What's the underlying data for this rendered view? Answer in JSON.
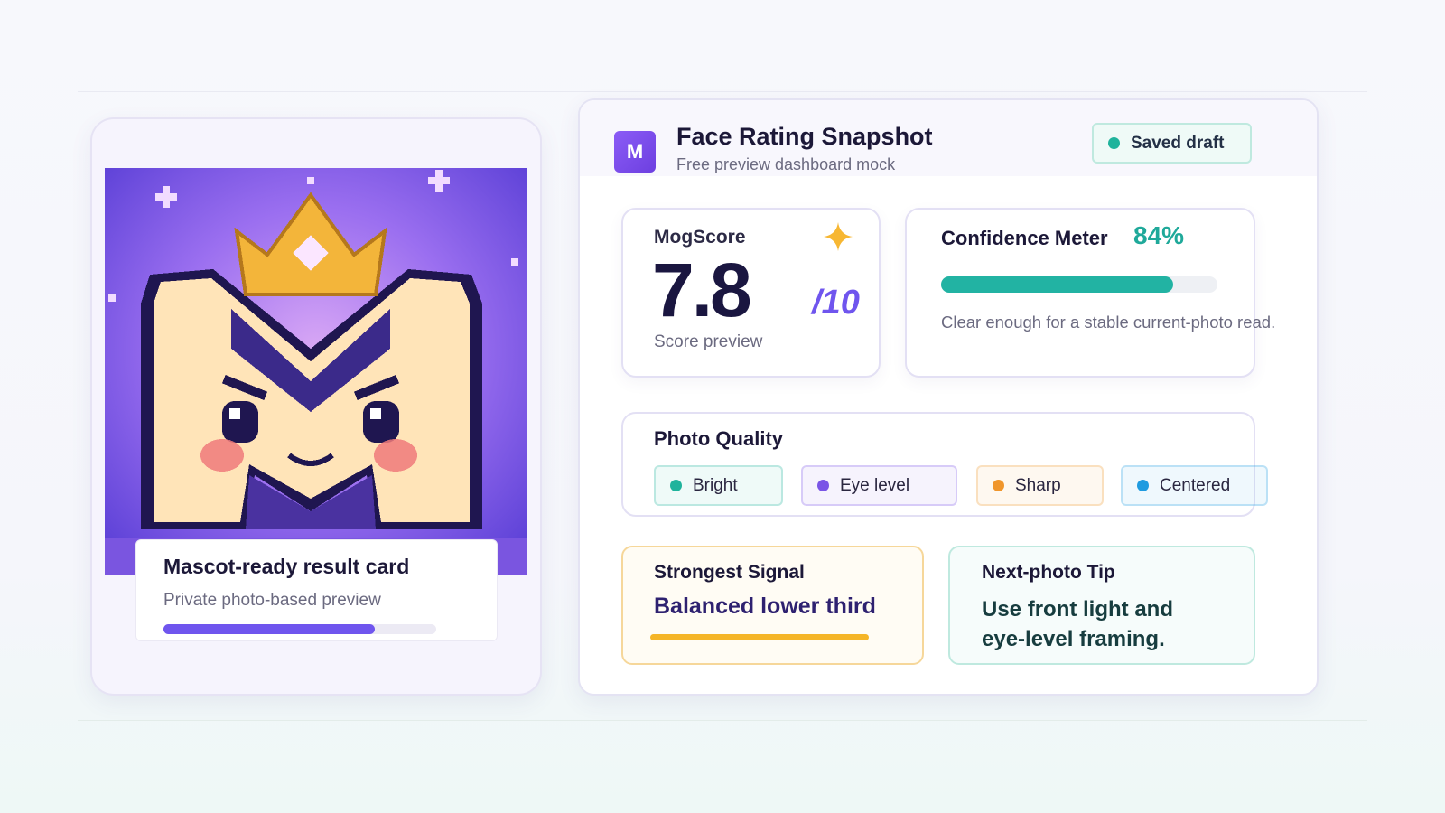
{
  "header": {
    "logo": "M",
    "title": "Face Rating Snapshot",
    "subtitle": "Free preview dashboard mock",
    "status": "Saved draft"
  },
  "result_card": {
    "title": "Mascot-ready result card",
    "subtitle": "Private photo-based preview"
  },
  "score": {
    "label": "MogScore",
    "value": "7.8",
    "scale": "/10",
    "caption": "Score preview"
  },
  "confidence": {
    "label": "Confidence Meter",
    "value": 84,
    "value_label": "84%",
    "note": "Clear enough for a stable current-photo read."
  },
  "photo_quality": {
    "title": "Photo Quality",
    "tags": [
      {
        "label": "Bright",
        "color": "#1fb39c"
      },
      {
        "label": "Eye level",
        "color": "#7a55e6"
      },
      {
        "label": "Sharp",
        "color": "#f0962c"
      },
      {
        "label": "Centered",
        "color": "#1f9be0"
      }
    ]
  },
  "strongest_signal": {
    "title": "Strongest Signal",
    "text": "Balanced lower third"
  },
  "tip": {
    "title": "Next-photo Tip",
    "text": "Use front light and eye-level framing."
  }
}
